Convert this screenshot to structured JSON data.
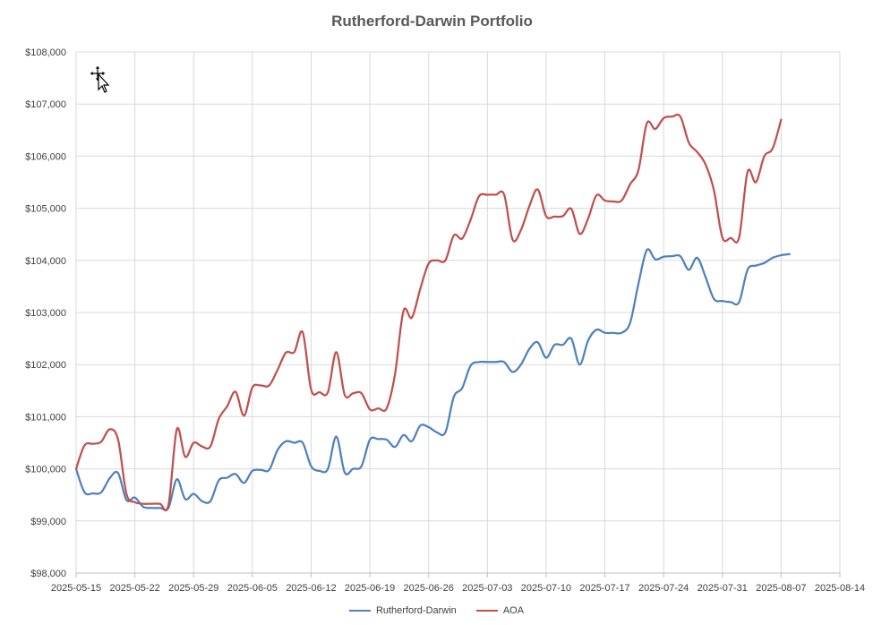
{
  "chart_data": {
    "type": "line",
    "title": "Rutherford-Darwin Portfolio",
    "xlabel": "",
    "ylabel": "",
    "x_ticks": [
      "2025-05-15",
      "2025-05-22",
      "2025-05-29",
      "2025-06-05",
      "2025-06-12",
      "2025-06-19",
      "2025-06-26",
      "2025-07-03",
      "2025-07-10",
      "2025-07-17",
      "2025-07-24",
      "2025-07-31",
      "2025-08-07",
      "2025-08-14"
    ],
    "xlim": [
      "2025-05-15",
      "2025-08-14"
    ],
    "y_ticks": [
      "$98,000",
      "$99,000",
      "$100,000",
      "$101,000",
      "$102,000",
      "$103,000",
      "$104,000",
      "$105,000",
      "$106,000",
      "$107,000",
      "$108,000"
    ],
    "ylim": [
      98000,
      108000
    ],
    "grid": true,
    "legend_position": "bottom",
    "series": [
      {
        "name": "Rutherford-Darwin",
        "color": "#4f81bd",
        "points": [
          [
            "2025-05-15",
            100000
          ],
          [
            "2025-05-16",
            99550
          ],
          [
            "2025-05-17",
            99530
          ],
          [
            "2025-05-18",
            99550
          ],
          [
            "2025-05-19",
            99820
          ],
          [
            "2025-05-20",
            99920
          ],
          [
            "2025-05-21",
            99400
          ],
          [
            "2025-05-22",
            99450
          ],
          [
            "2025-05-23",
            99270
          ],
          [
            "2025-05-24",
            99250
          ],
          [
            "2025-05-25",
            99250
          ],
          [
            "2025-05-26",
            99250
          ],
          [
            "2025-05-27",
            99800
          ],
          [
            "2025-05-28",
            99420
          ],
          [
            "2025-05-29",
            99520
          ],
          [
            "2025-05-30",
            99380
          ],
          [
            "2025-05-31",
            99380
          ],
          [
            "2025-06-01",
            99780
          ],
          [
            "2025-06-02",
            99830
          ],
          [
            "2025-06-03",
            99900
          ],
          [
            "2025-06-04",
            99730
          ],
          [
            "2025-06-05",
            99960
          ],
          [
            "2025-06-06",
            99980
          ],
          [
            "2025-06-07",
            99980
          ],
          [
            "2025-06-08",
            100360
          ],
          [
            "2025-06-09",
            100530
          ],
          [
            "2025-06-10",
            100500
          ],
          [
            "2025-06-11",
            100500
          ],
          [
            "2025-06-12",
            100050
          ],
          [
            "2025-06-13",
            99960
          ],
          [
            "2025-06-14",
            100000
          ],
          [
            "2025-06-15",
            100620
          ],
          [
            "2025-06-16",
            99930
          ],
          [
            "2025-06-17",
            100000
          ],
          [
            "2025-06-18",
            100050
          ],
          [
            "2025-06-19",
            100560
          ],
          [
            "2025-06-20",
            100570
          ],
          [
            "2025-06-21",
            100560
          ],
          [
            "2025-06-22",
            100420
          ],
          [
            "2025-06-23",
            100650
          ],
          [
            "2025-06-24",
            100530
          ],
          [
            "2025-06-25",
            100830
          ],
          [
            "2025-06-26",
            100800
          ],
          [
            "2025-06-27",
            100700
          ],
          [
            "2025-06-28",
            100700
          ],
          [
            "2025-06-29",
            101380
          ],
          [
            "2025-06-30",
            101550
          ],
          [
            "2025-07-01",
            101980
          ],
          [
            "2025-07-02",
            102050
          ],
          [
            "2025-07-03",
            102050
          ],
          [
            "2025-07-04",
            102050
          ],
          [
            "2025-07-05",
            102050
          ],
          [
            "2025-07-06",
            101860
          ],
          [
            "2025-07-07",
            102000
          ],
          [
            "2025-07-08",
            102300
          ],
          [
            "2025-07-09",
            102430
          ],
          [
            "2025-07-10",
            102130
          ],
          [
            "2025-07-11",
            102380
          ],
          [
            "2025-07-12",
            102380
          ],
          [
            "2025-07-13",
            102500
          ],
          [
            "2025-07-14",
            102000
          ],
          [
            "2025-07-15",
            102460
          ],
          [
            "2025-07-16",
            102670
          ],
          [
            "2025-07-17",
            102610
          ],
          [
            "2025-07-18",
            102610
          ],
          [
            "2025-07-19",
            102610
          ],
          [
            "2025-07-20",
            102800
          ],
          [
            "2025-07-21",
            103550
          ],
          [
            "2025-07-22",
            104200
          ],
          [
            "2025-07-23",
            104020
          ],
          [
            "2025-07-24",
            104070
          ],
          [
            "2025-07-25",
            104080
          ],
          [
            "2025-07-26",
            104080
          ],
          [
            "2025-07-27",
            103820
          ],
          [
            "2025-07-28",
            104050
          ],
          [
            "2025-07-29",
            103680
          ],
          [
            "2025-07-30",
            103260
          ],
          [
            "2025-07-31",
            103220
          ],
          [
            "2025-08-01",
            103200
          ],
          [
            "2025-08-02",
            103200
          ],
          [
            "2025-08-03",
            103820
          ],
          [
            "2025-08-04",
            103900
          ],
          [
            "2025-08-05",
            103950
          ],
          [
            "2025-08-06",
            104050
          ],
          [
            "2025-08-07",
            104100
          ],
          [
            "2025-08-08",
            104120
          ]
        ]
      },
      {
        "name": "AOA",
        "color": "#c0504d",
        "points": [
          [
            "2025-05-15",
            100000
          ],
          [
            "2025-05-16",
            100450
          ],
          [
            "2025-05-17",
            100480
          ],
          [
            "2025-05-18",
            100520
          ],
          [
            "2025-05-19",
            100760
          ],
          [
            "2025-05-20",
            100560
          ],
          [
            "2025-05-21",
            99520
          ],
          [
            "2025-05-22",
            99360
          ],
          [
            "2025-05-23",
            99330
          ],
          [
            "2025-05-24",
            99330
          ],
          [
            "2025-05-25",
            99330
          ],
          [
            "2025-05-26",
            99300
          ],
          [
            "2025-05-27",
            100760
          ],
          [
            "2025-05-28",
            100230
          ],
          [
            "2025-05-29",
            100500
          ],
          [
            "2025-05-30",
            100430
          ],
          [
            "2025-05-31",
            100430
          ],
          [
            "2025-06-01",
            100960
          ],
          [
            "2025-06-02",
            101200
          ],
          [
            "2025-06-03",
            101480
          ],
          [
            "2025-06-04",
            101020
          ],
          [
            "2025-06-05",
            101560
          ],
          [
            "2025-06-06",
            101600
          ],
          [
            "2025-06-07",
            101600
          ],
          [
            "2025-06-08",
            101900
          ],
          [
            "2025-06-09",
            102230
          ],
          [
            "2025-06-10",
            102240
          ],
          [
            "2025-06-11",
            102620
          ],
          [
            "2025-06-12",
            101520
          ],
          [
            "2025-06-13",
            101470
          ],
          [
            "2025-06-14",
            101470
          ],
          [
            "2025-06-15",
            102240
          ],
          [
            "2025-06-16",
            101420
          ],
          [
            "2025-06-17",
            101450
          ],
          [
            "2025-06-18",
            101450
          ],
          [
            "2025-06-19",
            101140
          ],
          [
            "2025-06-20",
            101160
          ],
          [
            "2025-06-21",
            101160
          ],
          [
            "2025-06-22",
            101820
          ],
          [
            "2025-06-23",
            103030
          ],
          [
            "2025-06-24",
            102900
          ],
          [
            "2025-06-25",
            103450
          ],
          [
            "2025-06-26",
            103940
          ],
          [
            "2025-06-27",
            104000
          ],
          [
            "2025-06-28",
            104000
          ],
          [
            "2025-06-29",
            104480
          ],
          [
            "2025-06-30",
            104420
          ],
          [
            "2025-07-01",
            104780
          ],
          [
            "2025-07-02",
            105230
          ],
          [
            "2025-07-03",
            105260
          ],
          [
            "2025-07-04",
            105260
          ],
          [
            "2025-07-05",
            105260
          ],
          [
            "2025-07-06",
            104400
          ],
          [
            "2025-07-07",
            104580
          ],
          [
            "2025-07-08",
            105040
          ],
          [
            "2025-07-09",
            105360
          ],
          [
            "2025-07-10",
            104850
          ],
          [
            "2025-07-11",
            104840
          ],
          [
            "2025-07-12",
            104850
          ],
          [
            "2025-07-13",
            104990
          ],
          [
            "2025-07-14",
            104510
          ],
          [
            "2025-07-15",
            104800
          ],
          [
            "2025-07-16",
            105250
          ],
          [
            "2025-07-17",
            105150
          ],
          [
            "2025-07-18",
            105130
          ],
          [
            "2025-07-19",
            105150
          ],
          [
            "2025-07-20",
            105460
          ],
          [
            "2025-07-21",
            105730
          ],
          [
            "2025-07-22",
            106630
          ],
          [
            "2025-07-23",
            106520
          ],
          [
            "2025-07-24",
            106730
          ],
          [
            "2025-07-25",
            106760
          ],
          [
            "2025-07-26",
            106760
          ],
          [
            "2025-07-27",
            106260
          ],
          [
            "2025-07-28",
            106080
          ],
          [
            "2025-07-29",
            105840
          ],
          [
            "2025-07-30",
            105340
          ],
          [
            "2025-07-31",
            104440
          ],
          [
            "2025-08-01",
            104430
          ],
          [
            "2025-08-02",
            104440
          ],
          [
            "2025-08-03",
            105700
          ],
          [
            "2025-08-04",
            105500
          ],
          [
            "2025-08-05",
            106000
          ],
          [
            "2025-08-06",
            106150
          ],
          [
            "2025-08-07",
            106700
          ]
        ]
      }
    ]
  },
  "icons": {
    "cursor": "move-cursor-icon"
  }
}
